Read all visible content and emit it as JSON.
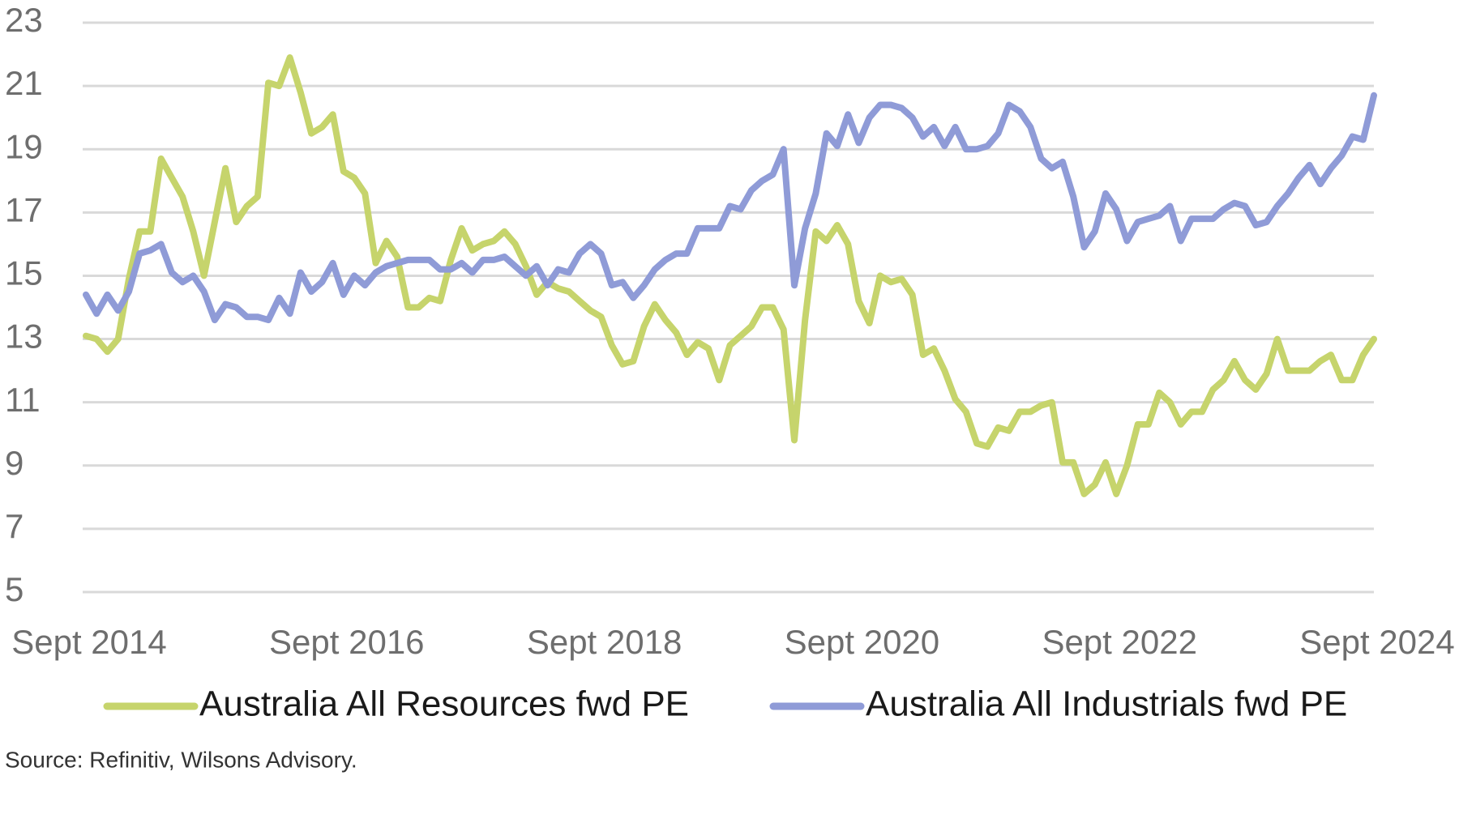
{
  "chart_data": {
    "type": "line",
    "source": "Source: Refinitiv, Wilsons Advisory.",
    "categories": [
      "Sept 2014",
      null,
      null,
      null,
      null,
      null,
      null,
      null,
      null,
      null,
      null,
      null,
      null,
      null,
      null,
      null,
      null,
      null,
      null,
      null,
      null,
      null,
      null,
      null,
      "Sept 2016",
      null,
      null,
      null,
      null,
      null,
      null,
      null,
      null,
      null,
      null,
      null,
      null,
      null,
      null,
      null,
      null,
      null,
      null,
      null,
      null,
      null,
      null,
      null,
      "Sept 2018",
      null,
      null,
      null,
      null,
      null,
      null,
      null,
      null,
      null,
      null,
      null,
      null,
      null,
      null,
      null,
      null,
      null,
      null,
      null,
      null,
      null,
      null,
      null,
      "Sept 2020",
      null,
      null,
      null,
      null,
      null,
      null,
      null,
      null,
      null,
      null,
      null,
      null,
      null,
      null,
      null,
      null,
      null,
      null,
      null,
      null,
      null,
      null,
      null,
      "Sept 2022",
      null,
      null,
      null,
      null,
      null,
      null,
      null,
      null,
      null,
      null,
      null,
      null,
      null,
      null,
      null,
      null,
      null,
      null,
      null,
      null,
      null,
      null,
      null,
      "Sept 2024"
    ],
    "series": [
      {
        "name": "Australia All Resources fwd PE",
        "color": "#c6d46c",
        "values": [
          13.1,
          13.0,
          12.6,
          13.0,
          14.9,
          16.4,
          16.4,
          18.7,
          18.1,
          17.5,
          16.4,
          15.0,
          16.7,
          18.4,
          16.7,
          17.2,
          17.5,
          21.1,
          21.0,
          21.9,
          20.8,
          19.5,
          19.7,
          20.1,
          18.3,
          18.1,
          17.6,
          15.4,
          16.1,
          15.6,
          14.0,
          14.0,
          14.3,
          14.2,
          15.5,
          16.5,
          15.8,
          16.0,
          16.1,
          16.4,
          16.0,
          15.3,
          14.4,
          14.8,
          14.6,
          14.5,
          14.2,
          13.9,
          13.7,
          12.8,
          12.2,
          12.3,
          13.4,
          14.1,
          13.6,
          13.2,
          12.5,
          12.9,
          12.7,
          11.7,
          12.8,
          13.1,
          13.4,
          14.0,
          14.0,
          13.3,
          9.8,
          13.6,
          16.4,
          16.1,
          16.6,
          16.0,
          14.2,
          13.5,
          15.0,
          14.8,
          14.9,
          14.4,
          12.5,
          12.7,
          12.0,
          11.1,
          10.7,
          9.7,
          9.6,
          10.2,
          10.1,
          10.7,
          10.7,
          10.9,
          11.0,
          9.1,
          9.1,
          8.1,
          8.4,
          9.1,
          8.1,
          9.0,
          10.3,
          10.3,
          11.3,
          11.0,
          10.3,
          10.7,
          10.7,
          11.4,
          11.7,
          12.3,
          11.7,
          11.4,
          11.9,
          13.0,
          12.0,
          12.0,
          12.0,
          12.3,
          12.5,
          11.7,
          11.7,
          12.5,
          13.0
        ]
      },
      {
        "name": "Australia All Industrials fwd PE",
        "color": "#8f9bd7",
        "values": [
          14.4,
          13.8,
          14.4,
          13.9,
          14.5,
          15.7,
          15.8,
          16.0,
          15.1,
          14.8,
          15.0,
          14.5,
          13.6,
          14.1,
          14.0,
          13.7,
          13.7,
          13.6,
          14.3,
          13.8,
          15.1,
          14.5,
          14.8,
          15.4,
          14.4,
          15.0,
          14.7,
          15.1,
          15.3,
          15.4,
          15.5,
          15.5,
          15.5,
          15.2,
          15.2,
          15.4,
          15.1,
          15.5,
          15.5,
          15.6,
          15.3,
          15.0,
          15.3,
          14.7,
          15.2,
          15.1,
          15.7,
          16.0,
          15.7,
          14.7,
          14.8,
          14.3,
          14.7,
          15.2,
          15.5,
          15.7,
          15.7,
          16.5,
          16.5,
          16.5,
          17.2,
          17.1,
          17.7,
          18.0,
          18.2,
          19.0,
          14.7,
          16.5,
          17.6,
          19.5,
          19.1,
          20.1,
          19.2,
          20.0,
          20.4,
          20.4,
          20.3,
          20.0,
          19.4,
          19.7,
          19.1,
          19.7,
          19.0,
          19.0,
          19.1,
          19.5,
          20.4,
          20.2,
          19.7,
          18.7,
          18.4,
          18.6,
          17.5,
          15.9,
          16.4,
          17.6,
          17.1,
          16.1,
          16.7,
          16.8,
          16.9,
          17.2,
          16.1,
          16.8,
          16.8,
          16.8,
          17.1,
          17.3,
          17.2,
          16.6,
          16.7,
          17.2,
          17.6,
          18.1,
          18.5,
          17.9,
          18.4,
          18.8,
          19.4,
          19.3,
          20.7
        ]
      }
    ],
    "ylim": [
      5,
      23
    ],
    "yticks": [
      5,
      7,
      9,
      11,
      13,
      15,
      17,
      19,
      21,
      23
    ],
    "grid": true,
    "legend": "bottom"
  }
}
